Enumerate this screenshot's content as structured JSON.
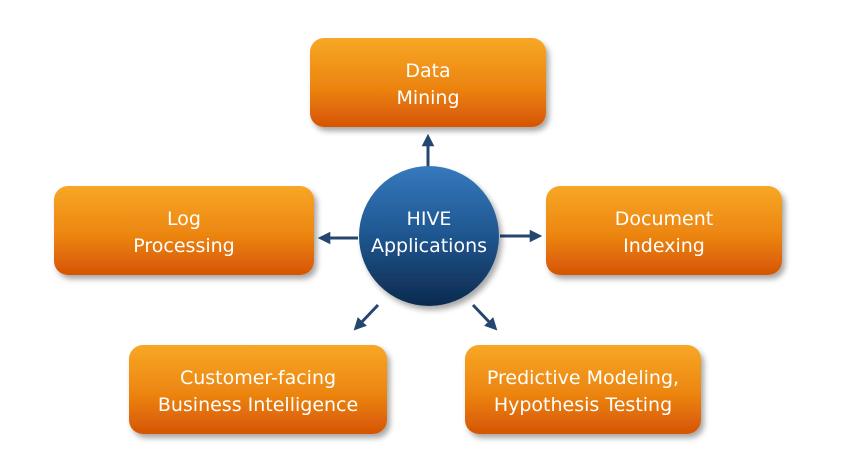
{
  "center": {
    "line1": "HIVE",
    "line2": "Applications"
  },
  "nodes": {
    "data_mining": {
      "line1": "Data",
      "line2": "Mining"
    },
    "log_processing": {
      "line1": "Log",
      "line2": "Processing"
    },
    "document_indexing": {
      "line1": "Document",
      "line2": "Indexing"
    },
    "customer_bi": {
      "line1": "Customer-facing",
      "line2": "Business Intelligence"
    },
    "predictive_modeling": {
      "line1": "Predictive Modeling,",
      "line2": "Hypothesis Testing"
    }
  },
  "colors": {
    "box_top": "#f6a21c",
    "box_bottom": "#d85a05",
    "circle_top": "#2f74b8",
    "circle_bottom": "#0f2f57",
    "arrow": "#24466f"
  }
}
